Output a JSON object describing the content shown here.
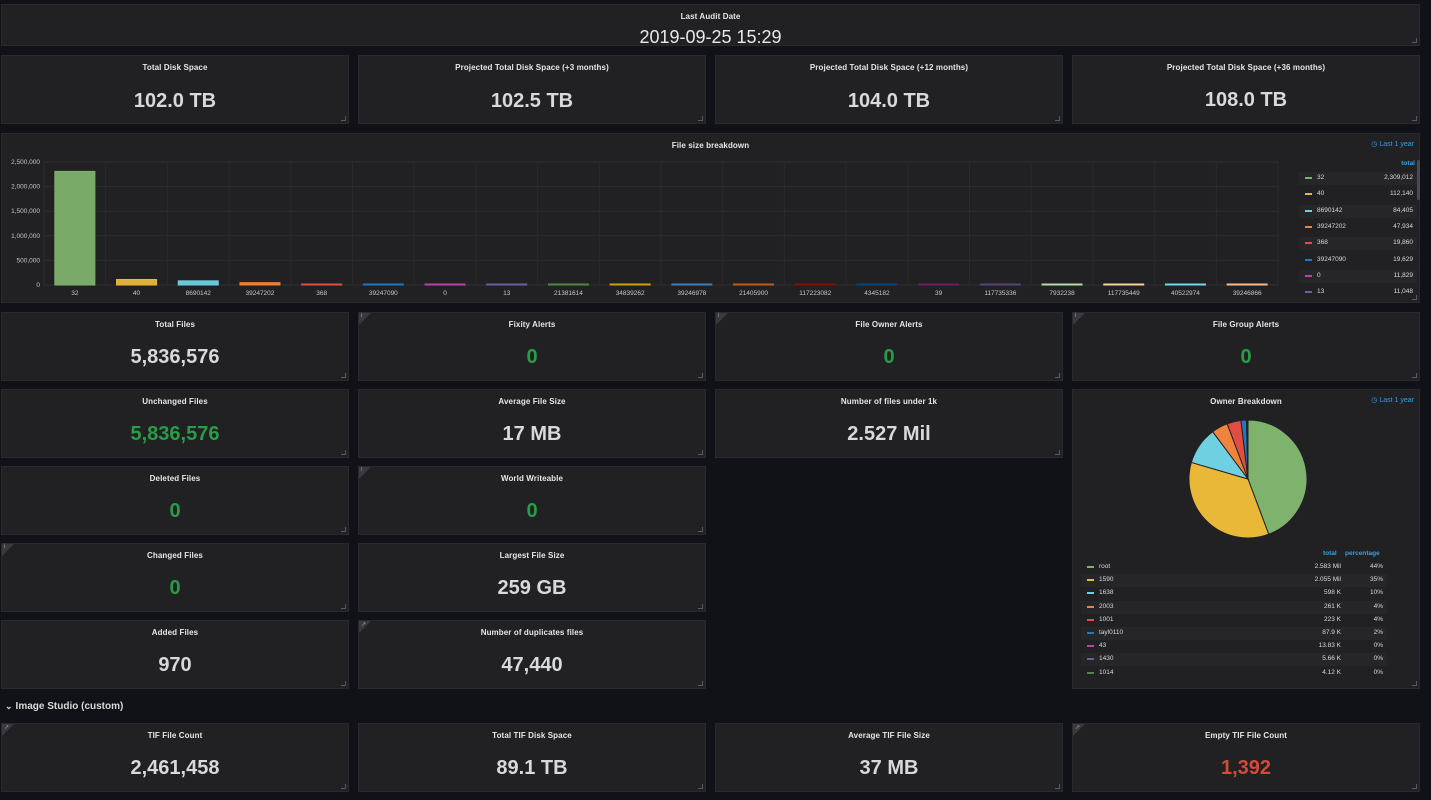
{
  "audit": {
    "title": "Last Audit Date",
    "value": "2019-09-25 15:29"
  },
  "disk": [
    {
      "title": "Total Disk Space",
      "value": "102.0 TB"
    },
    {
      "title": "Projected Total Disk Space (+3 months)",
      "value": "102.5 TB"
    },
    {
      "title": "Projected Total Disk Space (+12 months)",
      "value": "104.0 TB"
    },
    {
      "title": "Projected Total Disk Space (+36 months)",
      "value": "108.0 TB"
    }
  ],
  "file_size": {
    "title": "File size breakdown",
    "time_info": "Last 1 year",
    "legend_header": "total",
    "legend": [
      {
        "name": "32",
        "total": "2,309,012",
        "color": "#7eb26d"
      },
      {
        "name": "40",
        "total": "112,140",
        "color": "#eab839"
      },
      {
        "name": "8690142",
        "total": "84,405",
        "color": "#6ed0e0"
      },
      {
        "name": "39247202",
        "total": "47,934",
        "color": "#ef843c"
      },
      {
        "name": "368",
        "total": "19,860",
        "color": "#e24d42"
      },
      {
        "name": "39247090",
        "total": "19,629",
        "color": "#1f78c1"
      },
      {
        "name": "0",
        "total": "11,829",
        "color": "#ba43a9"
      },
      {
        "name": "13",
        "total": "11,048",
        "color": "#705da0"
      }
    ]
  },
  "chart_data": {
    "type": "bar",
    "title": "File size breakdown",
    "categories": [
      "32",
      "40",
      "8690142",
      "39247202",
      "368",
      "39247090",
      "0",
      "13",
      "21381614",
      "34839262",
      "39246978",
      "21405900",
      "117223082",
      "4345182",
      "39",
      "117735336",
      "7932238",
      "117735449",
      "40522974",
      "39246866"
    ],
    "values": [
      2309012,
      112140,
      84405,
      47934,
      19860,
      19629,
      11829,
      11048,
      9500,
      8800,
      8200,
      7600,
      7100,
      6600,
      6200,
      5800,
      5400,
      5000,
      4700,
      4400
    ],
    "colors": [
      "#7eb26d",
      "#eab839",
      "#6ed0e0",
      "#ef843c",
      "#e24d42",
      "#1f78c1",
      "#ba43a9",
      "#705da0",
      "#508642",
      "#cca300",
      "#447ebc",
      "#c15c17",
      "#890f02",
      "#0a437c",
      "#6d1f62",
      "#584477",
      "#b7dbab",
      "#f4d598",
      "#70dbed",
      "#f9ba8f"
    ],
    "yticks": [
      "2,500,000",
      "2,000,000",
      "1,500,000",
      "1,000,000",
      "500,000",
      "0"
    ],
    "ylim": [
      0,
      2500000
    ],
    "grid": true,
    "legend_position": "right"
  },
  "stats": {
    "total_files": {
      "title": "Total Files",
      "value": "5,836,576"
    },
    "fixity": {
      "title": "Fixity Alerts",
      "value": "0"
    },
    "owner_alerts": {
      "title": "File Owner Alerts",
      "value": "0"
    },
    "group_alerts": {
      "title": "File Group Alerts",
      "value": "0"
    },
    "unchanged": {
      "title": "Unchanged Files",
      "value": "5,836,576"
    },
    "avg_size": {
      "title": "Average File Size",
      "value": "17 MB"
    },
    "under_1k": {
      "title": "Number of files under 1k",
      "value": "2.527 Mil"
    },
    "deleted": {
      "title": "Deleted Files",
      "value": "0"
    },
    "world_writeable": {
      "title": "World Writeable",
      "value": "0"
    },
    "changed": {
      "title": "Changed Files",
      "value": "0"
    },
    "largest": {
      "title": "Largest File Size",
      "value": "259 GB"
    },
    "added": {
      "title": "Added Files",
      "value": "970"
    },
    "duplicates": {
      "title": "Number of duplicates files",
      "value": "47,440"
    }
  },
  "owner": {
    "title": "Owner Breakdown",
    "time_info": "Last 1 year",
    "col_total": "total",
    "col_pct": "percentage",
    "rows": [
      {
        "name": "root",
        "total": "2.583 Mil",
        "pct": "44%",
        "value": 2583000,
        "color": "#7eb26d"
      },
      {
        "name": "1590",
        "total": "2.055 Mil",
        "pct": "35%",
        "value": 2055000,
        "color": "#eab839"
      },
      {
        "name": "1638",
        "total": "598 K",
        "pct": "10%",
        "value": 598000,
        "color": "#6ed0e0"
      },
      {
        "name": "2003",
        "total": "261 K",
        "pct": "4%",
        "value": 261000,
        "color": "#ef843c"
      },
      {
        "name": "1001",
        "total": "223 K",
        "pct": "4%",
        "value": 223000,
        "color": "#e24d42"
      },
      {
        "name": "tayl0110",
        "total": "87.9 K",
        "pct": "2%",
        "value": 87900,
        "color": "#1f78c1"
      },
      {
        "name": "43",
        "total": "13.83 K",
        "pct": "0%",
        "value": 13830,
        "color": "#ba43a9"
      },
      {
        "name": "1430",
        "total": "5.66 K",
        "pct": "0%",
        "value": 5660,
        "color": "#705da0"
      },
      {
        "name": "1014",
        "total": "4.12 K",
        "pct": "0%",
        "value": 4120,
        "color": "#508642"
      }
    ]
  },
  "section": {
    "label": "Image Studio (custom)",
    "chevron": "chevron-down-icon"
  },
  "tif": [
    {
      "title": "TIF File Count",
      "value": "2,461,458"
    },
    {
      "title": "Total TIF Disk Space",
      "value": "89.1 TB"
    },
    {
      "title": "Average TIF File Size",
      "value": "37 MB"
    },
    {
      "title": "Empty TIF File Count",
      "value": "1,392"
    }
  ],
  "icons": {
    "info": "i",
    "link": "↗",
    "clock": "◷"
  }
}
